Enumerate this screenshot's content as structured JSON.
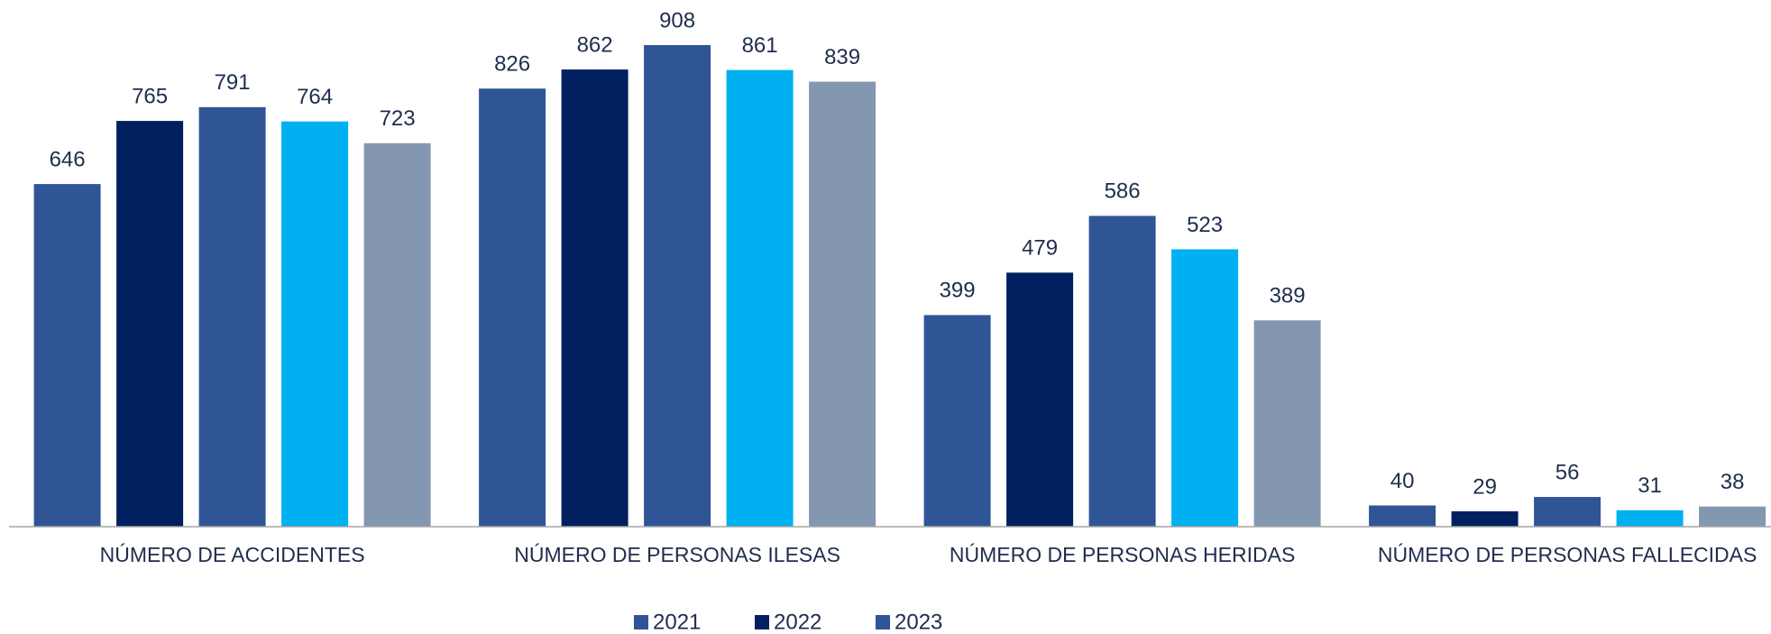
{
  "chart_data": {
    "type": "bar",
    "categories": [
      "NÚMERO DE ACCIDENTES",
      "NÚMERO DE PERSONAS ILESAS",
      "NÚMERO DE PERSONAS HERIDAS",
      "NÚMERO DE PERSONAS FALLECIDAS"
    ],
    "series": [
      {
        "name": "2021",
        "color": "#2f5597",
        "values": [
          646,
          826,
          399,
          40
        ]
      },
      {
        "name": "2022",
        "color": "#002060",
        "values": [
          765,
          862,
          479,
          29
        ]
      },
      {
        "name": "2023",
        "color": "#2f5597",
        "values": [
          791,
          908,
          586,
          56
        ]
      },
      {
        "color": "#00b0f0",
        "values": [
          764,
          861,
          523,
          31
        ]
      },
      {
        "color": "#8497b0",
        "values": [
          723,
          839,
          389,
          38
        ]
      }
    ],
    "legend": "bottom"
  }
}
